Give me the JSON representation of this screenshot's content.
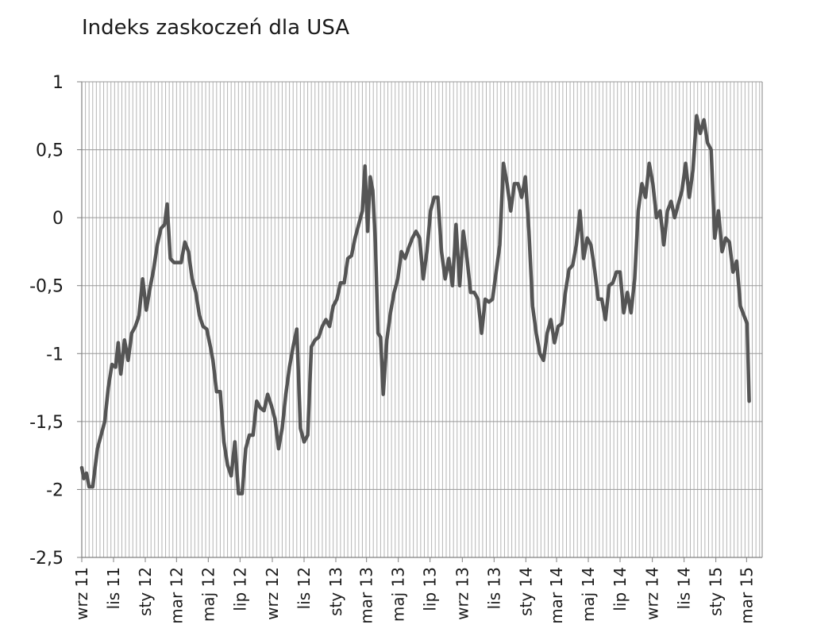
{
  "chart_data": {
    "type": "line",
    "title": "Indeks zaskoczeń dla USA",
    "xlabel": "",
    "ylabel": "",
    "ylim": [
      -2.5,
      1
    ],
    "yticks": [
      1,
      0.5,
      0,
      -0.5,
      -1,
      -1.5,
      -2,
      -2.5
    ],
    "ytick_labels": [
      "1",
      "0,5",
      "0",
      "-0,5",
      "-1",
      "-1,5",
      "-2",
      "-2,5"
    ],
    "x_range": [
      "2011-09-01",
      "2015-03-31"
    ],
    "xtick_labels": [
      "wrz 11",
      "lis 11",
      "sty 12",
      "mar 12",
      "maj 12",
      "lip 12",
      "wrz 12",
      "lis 12",
      "sty 13",
      "mar 13",
      "maj 13",
      "lip 13",
      "wrz 13",
      "lis 13",
      "sty 14",
      "mar 14",
      "maj 14",
      "lip 14",
      "wrz 14",
      "lis 14",
      "sty 15",
      "mar 15"
    ],
    "xtick_dates": [
      "2011-09-01",
      "2011-11-01",
      "2012-01-01",
      "2012-03-01",
      "2012-05-01",
      "2012-07-01",
      "2012-09-01",
      "2012-11-01",
      "2013-01-01",
      "2013-03-01",
      "2013-05-01",
      "2013-07-01",
      "2013-09-01",
      "2013-11-01",
      "2014-01-01",
      "2014-03-01",
      "2014-05-01",
      "2014-07-01",
      "2014-09-01",
      "2014-11-01",
      "2015-01-01",
      "2015-03-01"
    ],
    "grid": true,
    "series": [
      {
        "color": "#555555",
        "points": [
          [
            "2011-09-01",
            -1.84
          ],
          [
            "2011-09-05",
            -1.92
          ],
          [
            "2011-09-10",
            -1.88
          ],
          [
            "2011-09-15",
            -1.98
          ],
          [
            "2011-09-22",
            -1.98
          ],
          [
            "2011-10-01",
            -1.7
          ],
          [
            "2011-10-08",
            -1.6
          ],
          [
            "2011-10-15",
            -1.5
          ],
          [
            "2011-10-22",
            -1.25
          ],
          [
            "2011-10-29",
            -1.08
          ],
          [
            "2011-11-05",
            -1.1
          ],
          [
            "2011-11-10",
            -0.92
          ],
          [
            "2011-11-15",
            -1.15
          ],
          [
            "2011-11-22",
            -0.9
          ],
          [
            "2011-11-29",
            -1.05
          ],
          [
            "2011-12-06",
            -0.85
          ],
          [
            "2011-12-13",
            -0.8
          ],
          [
            "2011-12-20",
            -0.72
          ],
          [
            "2011-12-27",
            -0.45
          ],
          [
            "2012-01-03",
            -0.68
          ],
          [
            "2012-01-10",
            -0.52
          ],
          [
            "2012-01-17",
            -0.38
          ],
          [
            "2012-01-24",
            -0.2
          ],
          [
            "2012-01-31",
            -0.08
          ],
          [
            "2012-02-07",
            -0.05
          ],
          [
            "2012-02-12",
            0.1
          ],
          [
            "2012-02-18",
            -0.3
          ],
          [
            "2012-02-25",
            -0.33
          ],
          [
            "2012-03-03",
            -0.33
          ],
          [
            "2012-03-10",
            -0.33
          ],
          [
            "2012-03-17",
            -0.18
          ],
          [
            "2012-03-24",
            -0.25
          ],
          [
            "2012-03-31",
            -0.45
          ],
          [
            "2012-04-07",
            -0.55
          ],
          [
            "2012-04-14",
            -0.72
          ],
          [
            "2012-04-21",
            -0.8
          ],
          [
            "2012-04-28",
            -0.82
          ],
          [
            "2012-05-05",
            -0.95
          ],
          [
            "2012-05-10",
            -1.05
          ],
          [
            "2012-05-17",
            -1.28
          ],
          [
            "2012-05-24",
            -1.28
          ],
          [
            "2012-05-31",
            -1.65
          ],
          [
            "2012-06-07",
            -1.82
          ],
          [
            "2012-06-14",
            -1.9
          ],
          [
            "2012-06-21",
            -1.65
          ],
          [
            "2012-06-28",
            -2.03
          ],
          [
            "2012-07-05",
            -2.03
          ],
          [
            "2012-07-12",
            -1.7
          ],
          [
            "2012-07-19",
            -1.6
          ],
          [
            "2012-07-26",
            -1.6
          ],
          [
            "2012-08-02",
            -1.35
          ],
          [
            "2012-08-09",
            -1.4
          ],
          [
            "2012-08-16",
            -1.42
          ],
          [
            "2012-08-23",
            -1.3
          ],
          [
            "2012-08-30",
            -1.38
          ],
          [
            "2012-09-06",
            -1.48
          ],
          [
            "2012-09-13",
            -1.7
          ],
          [
            "2012-09-20",
            -1.55
          ],
          [
            "2012-09-27",
            -1.3
          ],
          [
            "2012-10-04",
            -1.1
          ],
          [
            "2012-10-11",
            -0.95
          ],
          [
            "2012-10-18",
            -0.82
          ],
          [
            "2012-10-25",
            -1.55
          ],
          [
            "2012-11-01",
            -1.65
          ],
          [
            "2012-11-08",
            -1.6
          ],
          [
            "2012-11-15",
            -0.95
          ],
          [
            "2012-11-22",
            -0.9
          ],
          [
            "2012-11-29",
            -0.88
          ],
          [
            "2012-12-06",
            -0.8
          ],
          [
            "2012-12-13",
            -0.75
          ],
          [
            "2012-12-20",
            -0.8
          ],
          [
            "2012-12-27",
            -0.65
          ],
          [
            "2013-01-03",
            -0.6
          ],
          [
            "2013-01-10",
            -0.48
          ],
          [
            "2013-01-17",
            -0.48
          ],
          [
            "2013-01-24",
            -0.3
          ],
          [
            "2013-01-31",
            -0.28
          ],
          [
            "2013-02-07",
            -0.15
          ],
          [
            "2013-02-14",
            -0.05
          ],
          [
            "2013-02-21",
            0.05
          ],
          [
            "2013-02-26",
            0.38
          ],
          [
            "2013-03-03",
            -0.1
          ],
          [
            "2013-03-08",
            0.3
          ],
          [
            "2013-03-13",
            0.2
          ],
          [
            "2013-03-18",
            -0.18
          ],
          [
            "2013-03-23",
            -0.85
          ],
          [
            "2013-03-28",
            -0.88
          ],
          [
            "2013-04-02",
            -1.3
          ],
          [
            "2013-04-09",
            -0.9
          ],
          [
            "2013-04-16",
            -0.7
          ],
          [
            "2013-04-23",
            -0.55
          ],
          [
            "2013-04-30",
            -0.45
          ],
          [
            "2013-05-07",
            -0.25
          ],
          [
            "2013-05-14",
            -0.3
          ],
          [
            "2013-05-21",
            -0.22
          ],
          [
            "2013-05-28",
            -0.15
          ],
          [
            "2013-06-04",
            -0.1
          ],
          [
            "2013-06-11",
            -0.15
          ],
          [
            "2013-06-18",
            -0.45
          ],
          [
            "2013-06-25",
            -0.25
          ],
          [
            "2013-07-02",
            0.05
          ],
          [
            "2013-07-09",
            0.15
          ],
          [
            "2013-07-16",
            0.15
          ],
          [
            "2013-07-23",
            -0.25
          ],
          [
            "2013-07-30",
            -0.45
          ],
          [
            "2013-08-06",
            -0.3
          ],
          [
            "2013-08-13",
            -0.5
          ],
          [
            "2013-08-20",
            -0.05
          ],
          [
            "2013-08-27",
            -0.5
          ],
          [
            "2013-09-03",
            -0.1
          ],
          [
            "2013-09-10",
            -0.3
          ],
          [
            "2013-09-17",
            -0.55
          ],
          [
            "2013-09-24",
            -0.55
          ],
          [
            "2013-10-01",
            -0.6
          ],
          [
            "2013-10-08",
            -0.85
          ],
          [
            "2013-10-15",
            -0.6
          ],
          [
            "2013-10-22",
            -0.62
          ],
          [
            "2013-10-29",
            -0.6
          ],
          [
            "2013-11-05",
            -0.4
          ],
          [
            "2013-11-12",
            -0.2
          ],
          [
            "2013-11-19",
            0.4
          ],
          [
            "2013-11-26",
            0.25
          ],
          [
            "2013-12-03",
            0.05
          ],
          [
            "2013-12-10",
            0.25
          ],
          [
            "2013-12-17",
            0.25
          ],
          [
            "2013-12-24",
            0.15
          ],
          [
            "2013-12-31",
            0.3
          ],
          [
            "2014-01-07",
            -0.1
          ],
          [
            "2014-01-14",
            -0.65
          ],
          [
            "2014-01-21",
            -0.85
          ],
          [
            "2014-01-28",
            -1.0
          ],
          [
            "2014-02-04",
            -1.05
          ],
          [
            "2014-02-11",
            -0.85
          ],
          [
            "2014-02-18",
            -0.75
          ],
          [
            "2014-02-25",
            -0.92
          ],
          [
            "2014-03-04",
            -0.8
          ],
          [
            "2014-03-11",
            -0.78
          ],
          [
            "2014-03-18",
            -0.55
          ],
          [
            "2014-03-25",
            -0.38
          ],
          [
            "2014-04-01",
            -0.35
          ],
          [
            "2014-04-08",
            -0.2
          ],
          [
            "2014-04-15",
            0.05
          ],
          [
            "2014-04-22",
            -0.3
          ],
          [
            "2014-04-29",
            -0.15
          ],
          [
            "2014-05-06",
            -0.2
          ],
          [
            "2014-05-13",
            -0.38
          ],
          [
            "2014-05-20",
            -0.6
          ],
          [
            "2014-05-27",
            -0.6
          ],
          [
            "2014-06-03",
            -0.75
          ],
          [
            "2014-06-10",
            -0.5
          ],
          [
            "2014-06-17",
            -0.48
          ],
          [
            "2014-06-24",
            -0.4
          ],
          [
            "2014-07-01",
            -0.4
          ],
          [
            "2014-07-08",
            -0.7
          ],
          [
            "2014-07-15",
            -0.55
          ],
          [
            "2014-07-22",
            -0.7
          ],
          [
            "2014-07-29",
            -0.45
          ],
          [
            "2014-08-05",
            0.05
          ],
          [
            "2014-08-12",
            0.25
          ],
          [
            "2014-08-19",
            0.15
          ],
          [
            "2014-08-26",
            0.4
          ],
          [
            "2014-09-02",
            0.25
          ],
          [
            "2014-09-09",
            0.0
          ],
          [
            "2014-09-16",
            0.05
          ],
          [
            "2014-09-23",
            -0.2
          ],
          [
            "2014-09-30",
            0.05
          ],
          [
            "2014-10-07",
            0.12
          ],
          [
            "2014-10-14",
            0.0
          ],
          [
            "2014-10-21",
            0.1
          ],
          [
            "2014-10-28",
            0.2
          ],
          [
            "2014-11-04",
            0.4
          ],
          [
            "2014-11-11",
            0.15
          ],
          [
            "2014-11-18",
            0.35
          ],
          [
            "2014-11-25",
            0.75
          ],
          [
            "2014-12-02",
            0.62
          ],
          [
            "2014-12-09",
            0.72
          ],
          [
            "2014-12-16",
            0.55
          ],
          [
            "2014-12-23",
            0.5
          ],
          [
            "2014-12-30",
            -0.15
          ],
          [
            "2015-01-06",
            0.05
          ],
          [
            "2015-01-13",
            -0.25
          ],
          [
            "2015-01-20",
            -0.15
          ],
          [
            "2015-01-27",
            -0.18
          ],
          [
            "2015-02-03",
            -0.4
          ],
          [
            "2015-02-10",
            -0.32
          ],
          [
            "2015-02-17",
            -0.65
          ],
          [
            "2015-02-24",
            -0.72
          ],
          [
            "2015-03-02",
            -0.78
          ],
          [
            "2015-03-06",
            -1.35
          ]
        ]
      }
    ]
  }
}
